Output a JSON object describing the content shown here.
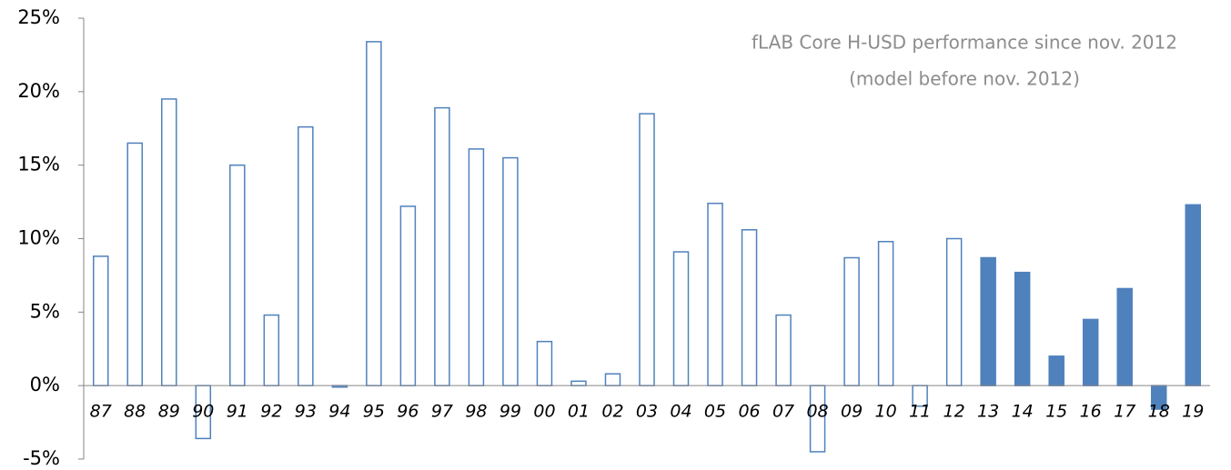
{
  "chart_data": {
    "type": "bar",
    "annotations": [
      "fLAB Core H-USD performance since nov. 2012",
      "(model before nov. 2012)"
    ],
    "categories": [
      "87",
      "88",
      "89",
      "90",
      "91",
      "92",
      "93",
      "94",
      "95",
      "96",
      "97",
      "98",
      "99",
      "00",
      "01",
      "02",
      "03",
      "04",
      "05",
      "06",
      "07",
      "08",
      "09",
      "10",
      "11",
      "12",
      "13",
      "14",
      "15",
      "16",
      "17",
      "18",
      "19"
    ],
    "values": [
      8.8,
      16.5,
      19.5,
      -3.6,
      15.0,
      4.8,
      17.6,
      -0.1,
      23.4,
      12.2,
      18.9,
      16.1,
      15.5,
      3.0,
      0.3,
      0.8,
      18.5,
      9.1,
      12.4,
      10.6,
      4.8,
      -4.5,
      8.7,
      9.8,
      -1.4,
      10.0,
      8.7,
      7.7,
      2.0,
      4.5,
      6.6,
      -1.6,
      12.3
    ],
    "colors": [
      "#ffffff",
      "#ffffff",
      "#ffffff",
      "#ffffff",
      "#ffffff",
      "#ffffff",
      "#ffffff",
      "#ffffff",
      "#ffffff",
      "#ffffff",
      "#ffffff",
      "#ffffff",
      "#ffffff",
      "#ffffff",
      "#ffffff",
      "#ffffff",
      "#ffffff",
      "#ffffff",
      "#ffffff",
      "#ffffff",
      "#ffffff",
      "#ffffff",
      "#ffffff",
      "#ffffff",
      "#ffffff",
      "#ffffff",
      "#4f81bd",
      "#4f81bd",
      "#4f81bd",
      "#4f81bd",
      "#4f81bd",
      "#4f81bd",
      "#4f81bd"
    ],
    "edgecolor": "#4f81bd",
    "ylim": [
      -5,
      25
    ],
    "yticks": [
      {
        "value": -5,
        "label": "-5%"
      },
      {
        "value": 0,
        "label": "0%"
      },
      {
        "value": 5,
        "label": "5%"
      },
      {
        "value": 10,
        "label": "10%"
      },
      {
        "value": 15,
        "label": "15%"
      },
      {
        "value": 20,
        "label": "20%"
      },
      {
        "value": 25,
        "label": "25%"
      }
    ]
  }
}
